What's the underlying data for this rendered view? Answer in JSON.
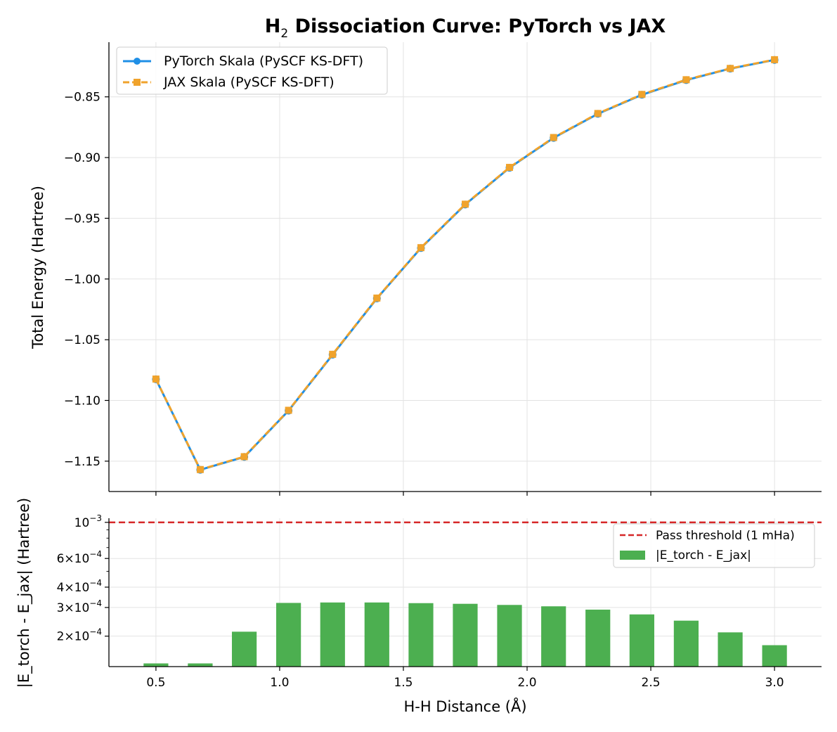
{
  "chart_data": [
    {
      "type": "line",
      "title_main": "H",
      "title_sub": "2",
      "title_rest": " Dissociation Curve: PyTorch vs JAX",
      "ylabel": "Total Energy (Hartree)",
      "xlim": [
        0.31,
        3.19
      ],
      "ylim": [
        -1.175,
        -0.805
      ],
      "yticks": [
        -1.15,
        -1.1,
        -1.05,
        -1.0,
        -0.95,
        -0.9,
        -0.85
      ],
      "ytick_labels": [
        "−1.15",
        "−1.10",
        "−1.05",
        "−1.00",
        "−0.95",
        "−0.90",
        "−0.85"
      ],
      "grid": true,
      "legend_position": "top-left",
      "x": [
        0.5,
        0.679,
        0.857,
        1.036,
        1.214,
        1.393,
        1.571,
        1.75,
        1.929,
        2.107,
        2.286,
        2.464,
        2.643,
        2.821,
        3.0
      ],
      "series": [
        {
          "name": "PyTorch Skala (PySCF KS-DFT)",
          "color": "#1f8fe6",
          "marker": "circle",
          "style": "solid",
          "values": [
            -1.0826,
            -1.1571,
            -1.1465,
            -1.1084,
            -1.0623,
            -1.016,
            -0.9745,
            -0.9387,
            -0.9084,
            -0.8838,
            -0.864,
            -0.8483,
            -0.8362,
            -0.8268,
            -0.8196
          ]
        },
        {
          "name": "JAX Skala (PySCF KS-DFT)",
          "color": "#f0a32c",
          "marker": "square",
          "style": "dashed",
          "values": [
            -1.0824,
            -1.1569,
            -1.1463,
            -1.1081,
            -1.062,
            -1.0157,
            -0.9742,
            -0.9384,
            -0.9081,
            -0.8835,
            -0.8637,
            -0.848,
            -0.8359,
            -0.8266,
            -0.8194
          ]
        }
      ]
    },
    {
      "type": "bar",
      "ylabel": "|E_torch - E_jax| (Hartree)",
      "xlabel": "H-H Distance (Å)",
      "yscale": "log",
      "ylim": [
        0.00013,
        0.00106
      ],
      "xlim": [
        0.31,
        3.19
      ],
      "xticks": [
        0.5,
        1.0,
        1.5,
        2.0,
        2.5,
        3.0
      ],
      "xtick_labels": [
        "0.5",
        "1.0",
        "1.5",
        "2.0",
        "2.5",
        "3.0"
      ],
      "yticks": [
        {
          "value": 0.001,
          "base": "10",
          "exp": "−3"
        },
        {
          "value": 0.0006,
          "base": "6×10",
          "exp": "−4"
        },
        {
          "value": 0.0004,
          "base": "4×10",
          "exp": "−4"
        },
        {
          "value": 0.0003,
          "base": "3×10",
          "exp": "−4"
        },
        {
          "value": 0.0002,
          "base": "2×10",
          "exp": "−4"
        }
      ],
      "grid": true,
      "legend_position": "top-right",
      "x": [
        0.5,
        0.679,
        0.857,
        1.036,
        1.214,
        1.393,
        1.571,
        1.75,
        1.929,
        2.107,
        2.286,
        2.464,
        2.643,
        2.821,
        3.0
      ],
      "bar_width": 0.1,
      "series": [
        {
          "name": "|E_torch - E_jax|",
          "color": "#4caf50",
          "values": [
            0.000136,
            0.000136,
            0.000213,
            0.00032,
            0.000322,
            0.000322,
            0.000319,
            0.000316,
            0.000311,
            0.000305,
            0.000291,
            0.000272,
            0.000249,
            0.000211,
            0.000176
          ]
        }
      ],
      "threshold": {
        "name": "Pass threshold (1 mHa)",
        "value": 0.001,
        "color": "#d62728"
      }
    }
  ]
}
